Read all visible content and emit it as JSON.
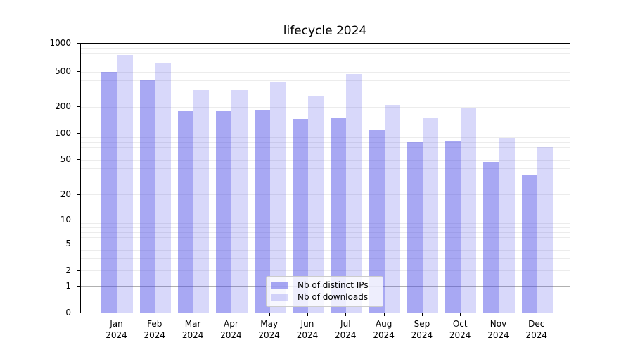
{
  "figure": {
    "title": "lifecycle 2024",
    "background": "#ffffff"
  },
  "chart_data": {
    "type": "bar",
    "title": "lifecycle 2024",
    "xlabel": "",
    "ylabel": "",
    "yscale": "symlog",
    "ylim": [
      0,
      1000
    ],
    "yticks": [
      0,
      1,
      2,
      5,
      10,
      20,
      50,
      100,
      200,
      500,
      1000
    ],
    "ytick_labels": [
      "0",
      "1",
      "2",
      "5",
      "10",
      "20",
      "50",
      "100",
      "200",
      "500",
      "1000"
    ],
    "grid_major_values": [
      1,
      10,
      100,
      1000
    ],
    "grid_minor_values": [
      2,
      3,
      4,
      5,
      6,
      7,
      8,
      9,
      20,
      30,
      40,
      50,
      60,
      70,
      80,
      90,
      200,
      300,
      400,
      500,
      600,
      700,
      800,
      900
    ],
    "categories": [
      "Jan 2024",
      "Feb 2024",
      "Mar 2024",
      "Apr 2024",
      "May 2024",
      "Jun 2024",
      "Jul 2024",
      "Aug 2024",
      "Sep 2024",
      "Oct 2024",
      "Nov 2024",
      "Dec 2024"
    ],
    "x_tick_line1": [
      "Jan",
      "Feb",
      "Mar",
      "Apr",
      "May",
      "Jun",
      "Jul",
      "Aug",
      "Sep",
      "Oct",
      "Nov",
      "Dec"
    ],
    "x_tick_line2": "2024",
    "series": [
      {
        "name": "Nb of distinct IPs",
        "color": "rgba(70,70,230,0.47)",
        "values": [
          500,
          410,
          180,
          180,
          187,
          147,
          152,
          108,
          80,
          82,
          47,
          33
        ]
      },
      {
        "name": "Nb of downloads",
        "color": "rgba(70,70,230,0.21)",
        "values": [
          750,
          630,
          310,
          310,
          380,
          270,
          475,
          210,
          152,
          192,
          88,
          70
        ]
      }
    ],
    "legend_position": "lower center",
    "grid": true
  },
  "colors": {
    "grid_major": "#b0b0b0",
    "grid_minor": "#ececec",
    "axis": "#000000",
    "text": "#000000",
    "legend_border": "#cccccc"
  }
}
